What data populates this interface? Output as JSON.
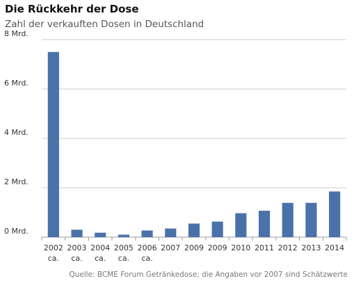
{
  "header": {
    "title": "Die Rückkehr der Dose",
    "subtitle": "Zahl der verkauften Dosen in Deutschland"
  },
  "footer": {
    "source": "Quelle: BCME Forum Getränkedose; die Angaben vor 2007 sind Schätzwerte"
  },
  "chart_data": {
    "type": "bar",
    "title": "Die Rückkehr der Dose",
    "subtitle": "Zahl der verkauften Dosen in Deutschland",
    "xlabel": "",
    "ylabel": "",
    "categories": [
      "2002",
      "2003",
      "2004",
      "2005",
      "2006",
      "2007",
      "2009",
      "2009",
      "2010",
      "2011",
      "2012",
      "2013",
      "2014"
    ],
    "category_notes": [
      "ca.",
      "ca.",
      "ca.",
      "ca.",
      "ca.",
      "",
      "",
      "",
      "",
      "",
      "",
      "",
      ""
    ],
    "values": [
      7.5,
      0.3,
      0.18,
      0.1,
      0.27,
      0.35,
      0.55,
      0.63,
      0.97,
      1.07,
      1.39,
      1.39,
      1.85
    ],
    "unit": "Mrd.",
    "ylim": [
      0,
      8
    ],
    "yticks": [
      0,
      2,
      4,
      6,
      8
    ],
    "ytick_labels": [
      "0 Mrd.",
      "2 Mrd.",
      "4 Mrd.",
      "6 Mrd.",
      "8 Mrd."
    ],
    "grid": true,
    "bar_color": "#4a72a9",
    "grid_color": "#cccccc",
    "axis_color": "#999999",
    "tick_text_color": "#333333"
  }
}
